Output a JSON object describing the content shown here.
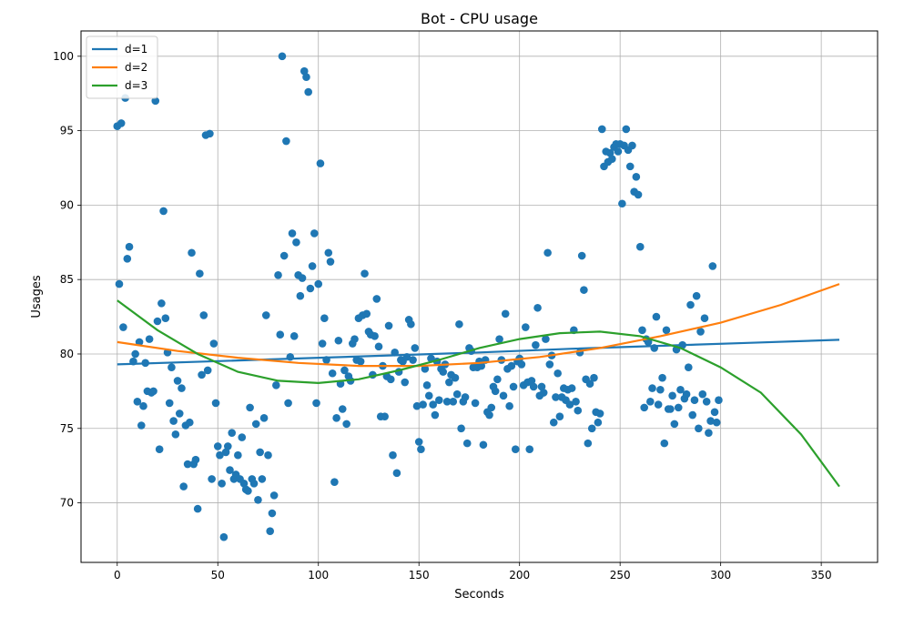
{
  "chart_data": {
    "type": "scatter",
    "title": "Bot - CPU usage",
    "xlabel": "Seconds",
    "ylabel": "Usages",
    "xlim": [
      -18,
      378
    ],
    "ylim": [
      66.0,
      101.7
    ],
    "xticks": [
      0,
      50,
      100,
      150,
      200,
      250,
      300,
      350
    ],
    "yticks": [
      70,
      75,
      80,
      85,
      90,
      95,
      100
    ],
    "grid": true,
    "legend_position": "top-left",
    "colors": {
      "points": "#1f77b4",
      "d1": "#1f77b4",
      "d2": "#ff7f0e",
      "d3": "#2ca02c",
      "grid": "#b0b0b0"
    },
    "points": [
      [
        0,
        95.3
      ],
      [
        1,
        84.7
      ],
      [
        2,
        95.5
      ],
      [
        3,
        81.8
      ],
      [
        4,
        97.2
      ],
      [
        5,
        86.4
      ],
      [
        6,
        87.2
      ],
      [
        8,
        79.5
      ],
      [
        9,
        80.0
      ],
      [
        10,
        76.8
      ],
      [
        11,
        80.8
      ],
      [
        12,
        75.2
      ],
      [
        13,
        76.5
      ],
      [
        14,
        79.4
      ],
      [
        15,
        77.5
      ],
      [
        16,
        81.0
      ],
      [
        17,
        77.4
      ],
      [
        18,
        77.5
      ],
      [
        19,
        97.0
      ],
      [
        20,
        82.2
      ],
      [
        21,
        73.6
      ],
      [
        22,
        83.4
      ],
      [
        23,
        89.6
      ],
      [
        24,
        82.4
      ],
      [
        25,
        80.1
      ],
      [
        26,
        76.7
      ],
      [
        27,
        79.1
      ],
      [
        28,
        75.5
      ],
      [
        29,
        74.6
      ],
      [
        30,
        78.2
      ],
      [
        31,
        76.0
      ],
      [
        32,
        77.7
      ],
      [
        33,
        71.1
      ],
      [
        34,
        75.2
      ],
      [
        35,
        72.6
      ],
      [
        36,
        75.4
      ],
      [
        37,
        86.8
      ],
      [
        38,
        72.6
      ],
      [
        39,
        72.9
      ],
      [
        40,
        69.6
      ],
      [
        41,
        85.4
      ],
      [
        42,
        78.6
      ],
      [
        43,
        82.6
      ],
      [
        44,
        94.7
      ],
      [
        45,
        78.9
      ],
      [
        46,
        94.8
      ],
      [
        47,
        71.6
      ],
      [
        48,
        80.7
      ],
      [
        49,
        76.7
      ],
      [
        50,
        73.8
      ],
      [
        51,
        73.2
      ],
      [
        52,
        71.3
      ],
      [
        53,
        67.7
      ],
      [
        54,
        73.4
      ],
      [
        55,
        73.8
      ],
      [
        56,
        72.2
      ],
      [
        57,
        74.7
      ],
      [
        58,
        71.6
      ],
      [
        59,
        71.9
      ],
      [
        60,
        73.2
      ],
      [
        61,
        71.6
      ],
      [
        62,
        74.4
      ],
      [
        63,
        71.3
      ],
      [
        64,
        70.9
      ],
      [
        65,
        70.8
      ],
      [
        66,
        76.4
      ],
      [
        67,
        71.6
      ],
      [
        68,
        71.3
      ],
      [
        69,
        75.3
      ],
      [
        70,
        70.2
      ],
      [
        71,
        73.4
      ],
      [
        72,
        71.6
      ],
      [
        73,
        75.7
      ],
      [
        74,
        82.6
      ],
      [
        75,
        73.2
      ],
      [
        76,
        68.1
      ],
      [
        77,
        69.3
      ],
      [
        78,
        70.5
      ],
      [
        79,
        77.9
      ],
      [
        80,
        85.3
      ],
      [
        81,
        81.3
      ],
      [
        82,
        100.0
      ],
      [
        83,
        86.6
      ],
      [
        84,
        94.3
      ],
      [
        85,
        76.7
      ],
      [
        86,
        79.8
      ],
      [
        87,
        88.1
      ],
      [
        88,
        81.2
      ],
      [
        89,
        87.5
      ],
      [
        90,
        85.3
      ],
      [
        91,
        83.9
      ],
      [
        92,
        85.1
      ],
      [
        93,
        99.0
      ],
      [
        94,
        98.6
      ],
      [
        95,
        97.6
      ],
      [
        96,
        84.4
      ],
      [
        97,
        85.9
      ],
      [
        98,
        88.1
      ],
      [
        99,
        76.7
      ],
      [
        100,
        84.7
      ],
      [
        101,
        92.8
      ],
      [
        102,
        80.7
      ],
      [
        103,
        82.4
      ],
      [
        104,
        79.6
      ],
      [
        105,
        86.8
      ],
      [
        106,
        86.2
      ],
      [
        107,
        78.7
      ],
      [
        108,
        71.4
      ],
      [
        109,
        75.7
      ],
      [
        110,
        80.9
      ],
      [
        111,
        78.0
      ],
      [
        112,
        76.3
      ],
      [
        113,
        78.9
      ],
      [
        114,
        75.3
      ],
      [
        115,
        78.5
      ],
      [
        116,
        78.2
      ],
      [
        117,
        80.7
      ],
      [
        118,
        81.0
      ],
      [
        119,
        79.6
      ],
      [
        120,
        82.4
      ],
      [
        121,
        79.5
      ],
      [
        122,
        82.6
      ],
      [
        123,
        85.4
      ],
      [
        124,
        82.7
      ],
      [
        125,
        81.5
      ],
      [
        126,
        81.3
      ],
      [
        127,
        78.6
      ],
      [
        128,
        81.2
      ],
      [
        129,
        83.7
      ],
      [
        130,
        80.5
      ],
      [
        131,
        75.8
      ],
      [
        132,
        79.2
      ],
      [
        133,
        75.8
      ],
      [
        134,
        78.5
      ],
      [
        135,
        81.9
      ],
      [
        136,
        78.3
      ],
      [
        137,
        73.2
      ],
      [
        138,
        80.1
      ],
      [
        139,
        72.0
      ],
      [
        140,
        78.8
      ],
      [
        141,
        79.6
      ],
      [
        142,
        79.5
      ],
      [
        143,
        78.1
      ],
      [
        144,
        79.8
      ],
      [
        145,
        82.3
      ],
      [
        146,
        82.0
      ],
      [
        147,
        79.6
      ],
      [
        148,
        80.4
      ],
      [
        149,
        76.5
      ],
      [
        150,
        74.1
      ],
      [
        151,
        73.6
      ],
      [
        152,
        76.6
      ],
      [
        153,
        79.0
      ],
      [
        154,
        77.9
      ],
      [
        155,
        77.2
      ],
      [
        156,
        79.7
      ],
      [
        157,
        76.6
      ],
      [
        158,
        75.9
      ],
      [
        159,
        79.5
      ],
      [
        160,
        76.9
      ],
      [
        161,
        79.0
      ],
      [
        162,
        78.8
      ],
      [
        163,
        79.3
      ],
      [
        164,
        76.8
      ],
      [
        165,
        78.1
      ],
      [
        166,
        78.6
      ],
      [
        167,
        76.8
      ],
      [
        168,
        78.4
      ],
      [
        169,
        77.3
      ],
      [
        170,
        82.0
      ],
      [
        171,
        75.0
      ],
      [
        172,
        76.8
      ],
      [
        173,
        77.1
      ],
      [
        174,
        74.0
      ],
      [
        175,
        80.4
      ],
      [
        176,
        80.2
      ],
      [
        177,
        79.1
      ],
      [
        178,
        76.7
      ],
      [
        179,
        79.1
      ],
      [
        180,
        79.5
      ],
      [
        181,
        79.2
      ],
      [
        182,
        73.9
      ],
      [
        183,
        79.6
      ],
      [
        184,
        76.1
      ],
      [
        185,
        75.9
      ],
      [
        186,
        76.4
      ],
      [
        187,
        77.8
      ],
      [
        188,
        77.5
      ],
      [
        189,
        78.3
      ],
      [
        190,
        81.0
      ],
      [
        191,
        79.6
      ],
      [
        192,
        77.2
      ],
      [
        193,
        82.7
      ],
      [
        194,
        79.0
      ],
      [
        195,
        76.5
      ],
      [
        196,
        79.2
      ],
      [
        197,
        77.8
      ],
      [
        198,
        73.6
      ],
      [
        199,
        79.5
      ],
      [
        200,
        79.7
      ],
      [
        201,
        79.3
      ],
      [
        202,
        77.9
      ],
      [
        203,
        81.8
      ],
      [
        204,
        78.1
      ],
      [
        205,
        73.6
      ],
      [
        206,
        78.2
      ],
      [
        207,
        77.8
      ],
      [
        208,
        80.6
      ],
      [
        209,
        83.1
      ],
      [
        210,
        77.2
      ],
      [
        211,
        77.8
      ],
      [
        212,
        77.4
      ],
      [
        213,
        81.0
      ],
      [
        214,
        86.8
      ],
      [
        215,
        79.3
      ],
      [
        216,
        79.9
      ],
      [
        217,
        75.4
      ],
      [
        218,
        77.1
      ],
      [
        219,
        78.7
      ],
      [
        220,
        75.8
      ],
      [
        221,
        77.1
      ],
      [
        222,
        77.7
      ],
      [
        223,
        76.9
      ],
      [
        224,
        77.6
      ],
      [
        225,
        76.6
      ],
      [
        226,
        77.7
      ],
      [
        227,
        81.6
      ],
      [
        228,
        76.8
      ],
      [
        229,
        76.2
      ],
      [
        230,
        80.1
      ],
      [
        231,
        86.6
      ],
      [
        232,
        84.3
      ],
      [
        233,
        78.3
      ],
      [
        234,
        74.0
      ],
      [
        235,
        78.0
      ],
      [
        236,
        75.0
      ],
      [
        237,
        78.4
      ],
      [
        238,
        76.1
      ],
      [
        239,
        75.4
      ],
      [
        240,
        76.0
      ],
      [
        241,
        95.1
      ],
      [
        242,
        92.6
      ],
      [
        243,
        93.6
      ],
      [
        244,
        92.9
      ],
      [
        245,
        93.5
      ],
      [
        246,
        93.1
      ],
      [
        247,
        93.9
      ],
      [
        248,
        94.1
      ],
      [
        249,
        93.6
      ],
      [
        250,
        94.1
      ],
      [
        251,
        90.1
      ],
      [
        252,
        94.0
      ],
      [
        253,
        95.1
      ],
      [
        254,
        93.7
      ],
      [
        255,
        92.6
      ],
      [
        256,
        94.0
      ],
      [
        257,
        90.9
      ],
      [
        258,
        91.9
      ],
      [
        259,
        90.7
      ],
      [
        260,
        87.2
      ],
      [
        261,
        81.6
      ],
      [
        262,
        76.4
      ],
      [
        263,
        81.0
      ],
      [
        264,
        80.8
      ],
      [
        265,
        76.8
      ],
      [
        266,
        77.7
      ],
      [
        267,
        80.4
      ],
      [
        268,
        82.5
      ],
      [
        269,
        76.6
      ],
      [
        270,
        77.6
      ],
      [
        271,
        78.4
      ],
      [
        272,
        74.0
      ],
      [
        273,
        81.6
      ],
      [
        274,
        76.3
      ],
      [
        275,
        76.3
      ],
      [
        276,
        77.2
      ],
      [
        277,
        75.3
      ],
      [
        278,
        80.3
      ],
      [
        279,
        76.4
      ],
      [
        280,
        77.6
      ],
      [
        281,
        80.6
      ],
      [
        282,
        77.0
      ],
      [
        283,
        77.3
      ],
      [
        284,
        79.1
      ],
      [
        285,
        83.3
      ],
      [
        286,
        75.9
      ],
      [
        287,
        76.9
      ],
      [
        288,
        83.9
      ],
      [
        289,
        75.0
      ],
      [
        290,
        81.5
      ],
      [
        291,
        77.3
      ],
      [
        292,
        82.4
      ],
      [
        293,
        76.8
      ],
      [
        294,
        74.7
      ],
      [
        295,
        75.5
      ],
      [
        296,
        85.9
      ],
      [
        297,
        76.1
      ],
      [
        298,
        75.4
      ],
      [
        299,
        76.9
      ]
    ],
    "series": [
      {
        "name": "d=1",
        "type": "line",
        "color": "#1f77b4",
        "x": [
          0,
          45,
          90,
          135,
          180,
          225,
          270,
          315,
          359
        ],
        "values": [
          79.3,
          79.5,
          79.7,
          79.9,
          80.1,
          80.35,
          80.55,
          80.75,
          80.95
        ]
      },
      {
        "name": "d=2",
        "type": "line",
        "color": "#ff7f0e",
        "x": [
          0,
          30,
          60,
          90,
          120,
          150,
          180,
          210,
          240,
          270,
          300,
          330,
          359
        ],
        "values": [
          80.8,
          80.2,
          79.75,
          79.4,
          79.2,
          79.2,
          79.4,
          79.8,
          80.4,
          81.2,
          82.1,
          83.3,
          84.7
        ]
      },
      {
        "name": "d=3",
        "type": "line",
        "color": "#2ca02c",
        "x": [
          0,
          20,
          40,
          60,
          80,
          100,
          120,
          140,
          160,
          180,
          200,
          220,
          240,
          260,
          280,
          300,
          320,
          340,
          359
        ],
        "values": [
          83.6,
          81.6,
          80.0,
          78.8,
          78.2,
          78.05,
          78.3,
          78.9,
          79.6,
          80.4,
          81.0,
          81.4,
          81.5,
          81.2,
          80.4,
          79.1,
          77.4,
          74.6,
          71.1
        ]
      }
    ]
  }
}
